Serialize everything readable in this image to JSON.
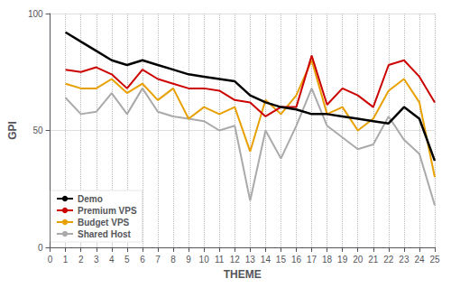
{
  "chart_data": {
    "type": "line",
    "xlabel": "THEME",
    "ylabel": "GPI",
    "x": [
      1,
      2,
      3,
      4,
      5,
      6,
      7,
      8,
      9,
      10,
      11,
      12,
      13,
      14,
      15,
      16,
      17,
      18,
      19,
      20,
      21,
      22,
      23,
      24,
      25
    ],
    "series": [
      {
        "name": "Demo",
        "color": "#000000",
        "values": [
          92,
          88,
          84,
          80,
          78,
          80,
          78,
          76,
          74,
          73,
          72,
          71,
          65,
          62,
          60,
          59,
          57,
          57,
          56,
          55,
          54,
          53,
          60,
          55,
          37
        ]
      },
      {
        "name": "Premium VPS",
        "color": "#cc0000",
        "values": [
          76,
          75,
          77,
          74,
          68,
          76,
          72,
          70,
          68,
          68,
          67,
          63,
          62,
          56,
          60,
          60,
          82,
          61,
          68,
          65,
          60,
          78,
          80,
          73,
          62
        ]
      },
      {
        "name": "Budget VPS",
        "color": "#e8a000",
        "values": [
          70,
          68,
          68,
          72,
          66,
          70,
          63,
          68,
          55,
          60,
          57,
          60,
          41,
          63,
          57,
          65,
          80,
          57,
          60,
          50,
          55,
          67,
          72,
          62,
          30
        ]
      },
      {
        "name": "Shared Host",
        "color": "#aaaaaa",
        "values": [
          64,
          57,
          58,
          66,
          57,
          68,
          58,
          56,
          55,
          54,
          50,
          52,
          20,
          50,
          38,
          52,
          68,
          52,
          47,
          42,
          44,
          56,
          46,
          40,
          18
        ]
      }
    ],
    "xlim": [
      0,
      25
    ],
    "xticks": [
      0,
      1,
      2,
      3,
      4,
      5,
      6,
      7,
      8,
      9,
      10,
      11,
      12,
      13,
      14,
      15,
      16,
      17,
      18,
      19,
      20,
      21,
      22,
      23,
      24,
      25
    ],
    "ylim": [
      0,
      100
    ],
    "yticks": [
      0,
      50,
      100
    ],
    "grid": true,
    "legend": "lower left"
  }
}
